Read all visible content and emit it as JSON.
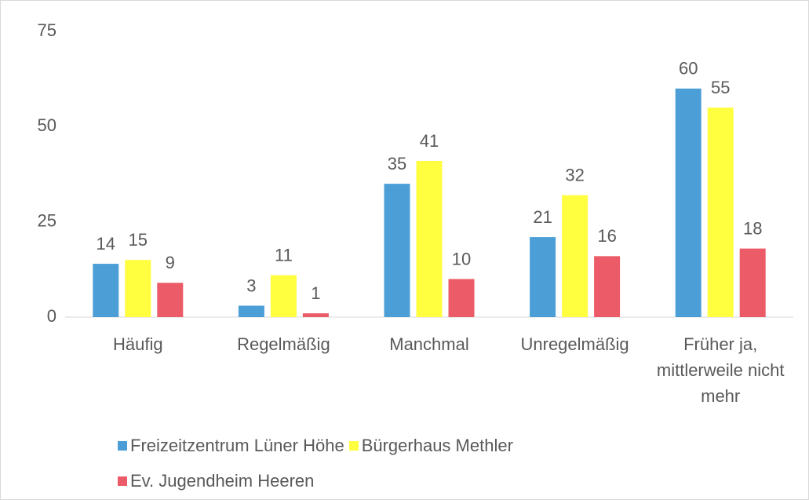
{
  "chart_data": {
    "type": "bar",
    "categories": [
      "Häufig",
      "Regelmäßig",
      "Manchmal",
      "Unregelmäßig",
      "Früher ja, mittlerweile nicht mehr"
    ],
    "series": [
      {
        "name": "Freizeitzentrum Lüner Höhe",
        "color": "#4c9fd6",
        "values": [
          14,
          3,
          35,
          21,
          60
        ]
      },
      {
        "name": "Bürgerhaus Methler",
        "color": "#ffff40",
        "values": [
          15,
          11,
          41,
          32,
          55
        ]
      },
      {
        "name": "Ev. Jugendheim Heeren",
        "color": "#eb5c68",
        "values": [
          9,
          1,
          10,
          16,
          18
        ]
      }
    ],
    "ylim": [
      0,
      75
    ],
    "yticks": [
      0,
      25,
      50,
      75
    ],
    "grid": false
  }
}
